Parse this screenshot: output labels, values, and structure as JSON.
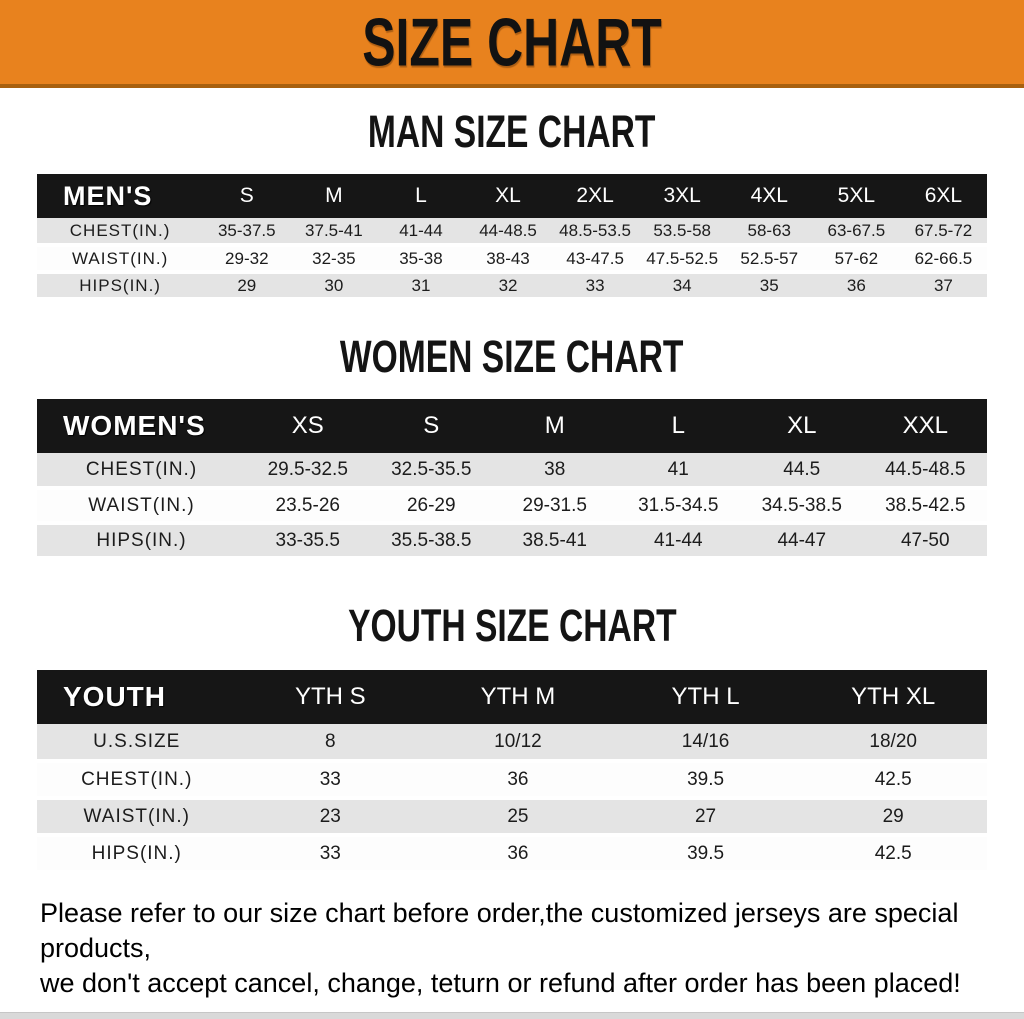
{
  "banner": {
    "title": "SIZE CHART",
    "bg_color": "#E8821E",
    "text_color": "#121212"
  },
  "sections": [
    {
      "heading": "MAN SIZE CHART",
      "table": {
        "label": "MEN'S",
        "columns": [
          "S",
          "M",
          "L",
          "XL",
          "2XL",
          "3XL",
          "4XL",
          "5XL",
          "6XL"
        ],
        "rows": [
          {
            "label": "CHEST(IN.)",
            "values": [
              "35-37.5",
              "37.5-41",
              "41-44",
              "44-48.5",
              "48.5-53.5",
              "53.5-58",
              "58-63",
              "63-67.5",
              "67.5-72"
            ]
          },
          {
            "label": "WAIST(IN.)",
            "values": [
              "29-32",
              "32-35",
              "35-38",
              "38-43",
              "43-47.5",
              "47.5-52.5",
              "52.5-57",
              "57-62",
              "62-66.5"
            ]
          },
          {
            "label": "HIPS(IN.)",
            "values": [
              "29",
              "30",
              "31",
              "32",
              "33",
              "34",
              "35",
              "36",
              "37"
            ]
          }
        ]
      }
    },
    {
      "heading": "WOMEN SIZE CHART",
      "table": {
        "label": "WOMEN'S",
        "columns": [
          "XS",
          "S",
          "M",
          "L",
          "XL",
          "XXL"
        ],
        "rows": [
          {
            "label": "CHEST(IN.)",
            "values": [
              "29.5-32.5",
              "32.5-35.5",
              "38",
              "41",
              "44.5",
              "44.5-48.5"
            ]
          },
          {
            "label": "WAIST(IN.)",
            "values": [
              "23.5-26",
              "26-29",
              "29-31.5",
              "31.5-34.5",
              "34.5-38.5",
              "38.5-42.5"
            ]
          },
          {
            "label": "HIPS(IN.)",
            "values": [
              "33-35.5",
              "35.5-38.5",
              "38.5-41",
              "41-44",
              "44-47",
              "47-50"
            ]
          }
        ]
      }
    },
    {
      "heading": "YOUTH SIZE CHART",
      "table": {
        "label": "YOUTH",
        "columns": [
          "YTH S",
          "YTH M",
          "YTH L",
          "YTH XL"
        ],
        "rows": [
          {
            "label": "U.S.SIZE",
            "values": [
              "8",
              "10/12",
              "14/16",
              "18/20"
            ]
          },
          {
            "label": "CHEST(IN.)",
            "values": [
              "33",
              "36",
              "39.5",
              "42.5"
            ]
          },
          {
            "label": "WAIST(IN.)",
            "values": [
              "23",
              "25",
              "27",
              "29"
            ]
          },
          {
            "label": "HIPS(IN.)",
            "values": [
              "33",
              "36",
              "39.5",
              "42.5"
            ]
          }
        ]
      }
    }
  ],
  "disclaimer": {
    "line1": "Please refer to our size chart before order,the customized jerseys are special products,",
    "line2": "we don't accept cancel, change, teturn or refund after order has been placed!",
    "color": "#C22A28"
  },
  "header_bar_color": "#161616",
  "stripe_color": "#E4E4E4"
}
